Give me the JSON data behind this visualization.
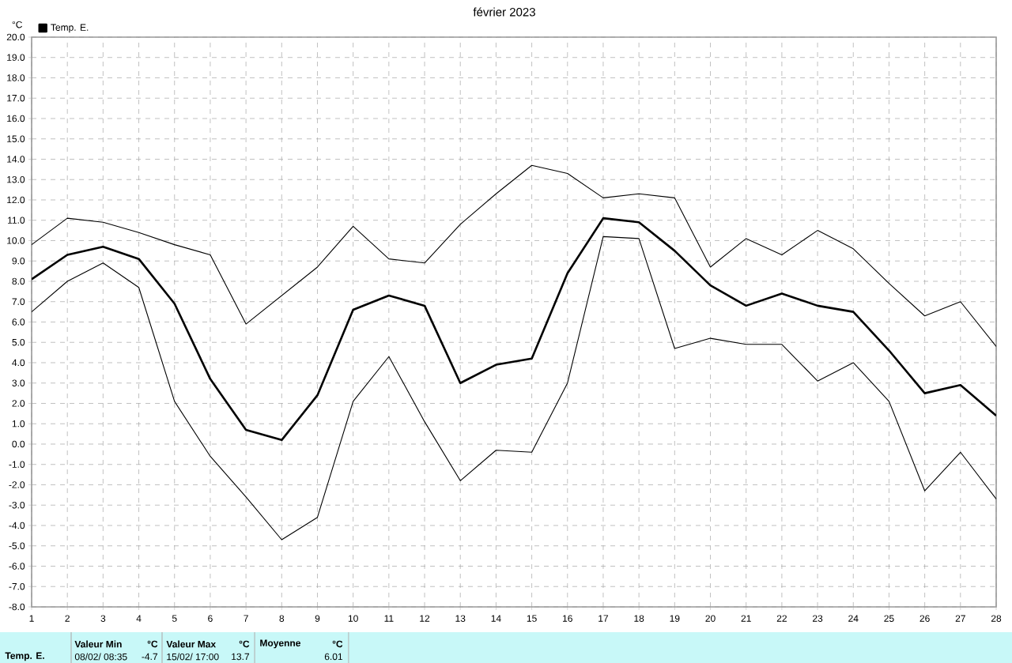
{
  "chart_data": {
    "type": "line",
    "title": "février 2023",
    "ylabel": "°C",
    "x": [
      1,
      2,
      3,
      4,
      5,
      6,
      7,
      8,
      9,
      10,
      11,
      12,
      13,
      14,
      15,
      16,
      17,
      18,
      19,
      20,
      21,
      22,
      23,
      24,
      25,
      26,
      27,
      28
    ],
    "series": [
      {
        "color": "#000000",
        "values": [
          9.8,
          11.1,
          10.9,
          10.4,
          9.8,
          9.3,
          5.9,
          7.3,
          8.7,
          10.7,
          9.1,
          8.9,
          10.8,
          12.3,
          13.7,
          13.3,
          12.1,
          12.3,
          12.1,
          8.7,
          10.1,
          9.3,
          10.5,
          9.6,
          7.9,
          6.3,
          7.0,
          4.8
        ]
      },
      {
        "name": "Temp. E.",
        "color": "#000000",
        "values": [
          8.1,
          9.3,
          9.7,
          9.1,
          6.9,
          3.2,
          0.7,
          0.2,
          2.4,
          6.6,
          7.3,
          6.8,
          3.0,
          3.9,
          4.2,
          8.4,
          11.1,
          10.9,
          9.5,
          7.8,
          6.8,
          7.4,
          6.8,
          6.5,
          4.6,
          2.5,
          2.9,
          1.4
        ]
      },
      {
        "color": "#000000",
        "values": [
          6.5,
          8.0,
          8.9,
          7.7,
          2.1,
          -0.6,
          -2.6,
          -4.7,
          -3.6,
          2.1,
          4.3,
          1.1,
          -1.8,
          -0.3,
          -0.4,
          3.0,
          10.2,
          10.1,
          4.7,
          5.2,
          4.9,
          4.9,
          3.1,
          4.0,
          2.1,
          -2.3,
          -0.4,
          -2.7
        ]
      }
    ],
    "xlim": [
      1,
      28
    ],
    "xticks": [
      1,
      2,
      3,
      4,
      5,
      6,
      7,
      8,
      9,
      10,
      11,
      12,
      13,
      14,
      15,
      16,
      17,
      18,
      19,
      20,
      21,
      22,
      23,
      24,
      25,
      26,
      27,
      28
    ],
    "ylim": [
      -8,
      20
    ],
    "yticks": [
      {
        "value": -8,
        "label": "-8.0"
      },
      {
        "value": -7,
        "label": "-7.0"
      },
      {
        "value": -6,
        "label": "-6.0"
      },
      {
        "value": -5,
        "label": "-5.0"
      },
      {
        "value": -4,
        "label": "-4.0"
      },
      {
        "value": -3,
        "label": "-3.0"
      },
      {
        "value": -2,
        "label": "-2.0"
      },
      {
        "value": -1,
        "label": "-1.0"
      },
      {
        "value": 0,
        "label": "0.0"
      },
      {
        "value": 1,
        "label": "1.0"
      },
      {
        "value": 2,
        "label": "2.0"
      },
      {
        "value": 3,
        "label": "3.0"
      },
      {
        "value": 4,
        "label": "4.0"
      },
      {
        "value": 5,
        "label": "5.0"
      },
      {
        "value": 6,
        "label": "6.0"
      },
      {
        "value": 7,
        "label": "7.0"
      },
      {
        "value": 8,
        "label": "8.0"
      },
      {
        "value": 9,
        "label": "9.0"
      },
      {
        "value": 10,
        "label": "10.0"
      },
      {
        "value": 11,
        "label": "11.0"
      },
      {
        "value": 12,
        "label": "12.0"
      },
      {
        "value": 13,
        "label": "13.0"
      },
      {
        "value": 14,
        "label": "14.0"
      },
      {
        "value": 15,
        "label": "15.0"
      },
      {
        "value": 16,
        "label": "16.0"
      },
      {
        "value": 17,
        "label": "17.0"
      },
      {
        "value": 18,
        "label": "18.0"
      },
      {
        "value": 19,
        "label": "19.0"
      },
      {
        "value": 20,
        "label": "20.0"
      }
    ],
    "grid": true,
    "legend": "top left",
    "marker": "none",
    "line_style": "solid",
    "annotations": [
      "Temp. E.",
      "Valeur Min",
      "°C",
      "08/02/  08:35",
      "-4.7",
      "Valeur Max",
      "°C",
      "15/02/  17:00",
      "13.7",
      "Moyenne",
      "°C",
      "6.01"
    ]
  }
}
